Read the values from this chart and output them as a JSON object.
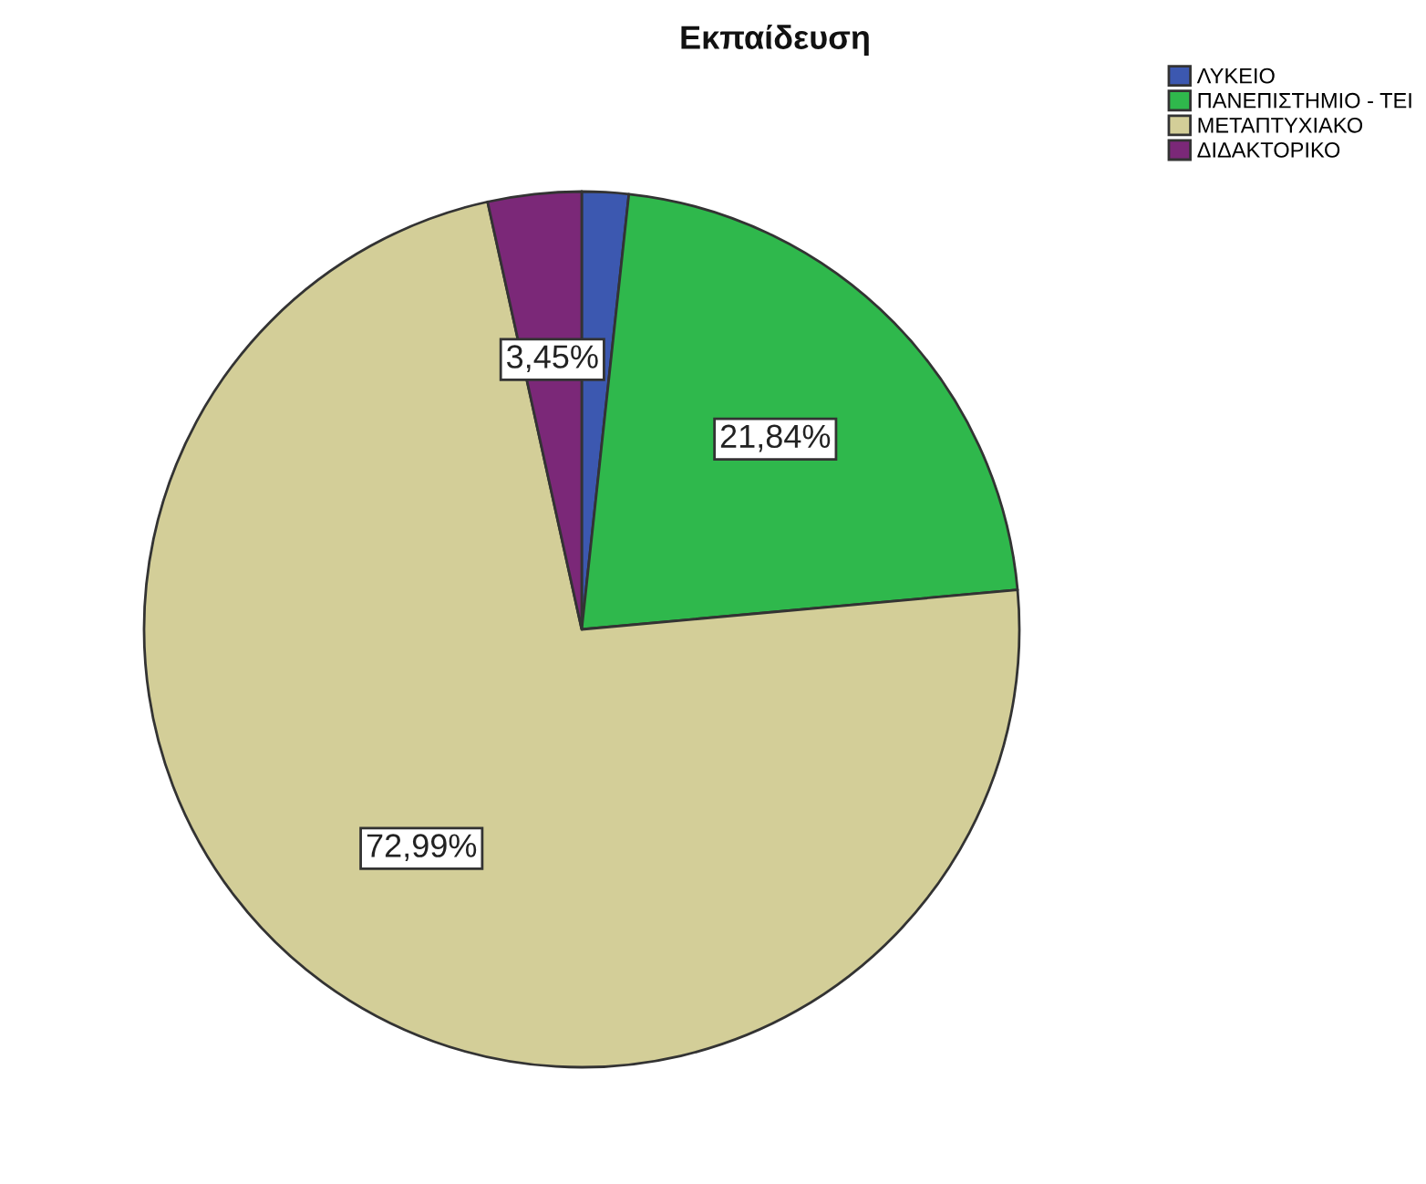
{
  "chart_data": {
    "type": "pie",
    "title": "Εκπαίδευση",
    "categories": [
      "ΛΥΚΕΙΟ",
      "ΠΑΝΕΠΙΣΤΗΜΙΟ - ΤΕΙ",
      "ΜΕΤΑΠΤΥΧΙΑΚΟ",
      "ΔΙΔΑΚΤΟΡΙΚΟ"
    ],
    "values": [
      1.72,
      21.84,
      72.99,
      3.45
    ],
    "colors": [
      "#3c58b0",
      "#2fb84c",
      "#d3ce98",
      "#7b2878"
    ],
    "value_labels": [
      null,
      "21,84%",
      "72,99%",
      "3,45%"
    ],
    "legend": "top right"
  }
}
